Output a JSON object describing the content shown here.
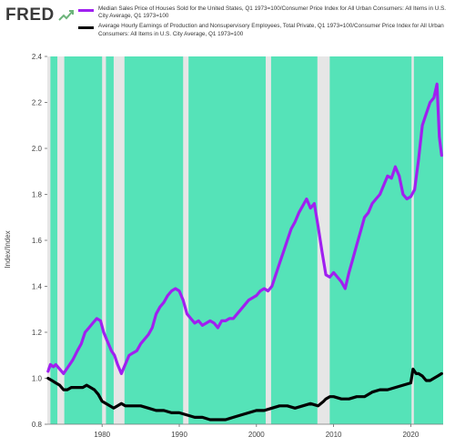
{
  "header": {
    "logo_text": "FRED"
  },
  "colors": {
    "recession_shade": "#55e3b8",
    "series1": "#a020f0",
    "series2": "#000000",
    "plot_background": "#e6e6e6"
  },
  "chart_data": {
    "type": "line",
    "title": "",
    "xlabel": "",
    "ylabel": "Index/Index",
    "xlim": [
      1972.9,
      2024.2
    ],
    "ylim": [
      0.8,
      2.4
    ],
    "y_ticks": [
      "0.8",
      "1.0",
      "1.2",
      "1.4",
      "1.6",
      "1.8",
      "2.0",
      "2.2",
      "2.4"
    ],
    "x_ticks": [
      "1980",
      "1990",
      "2000",
      "2010",
      "2020"
    ],
    "grid": false,
    "legend_position": "top",
    "shaded_periods": [
      [
        1973.3,
        1974.2
      ],
      [
        1975.1,
        1980.0
      ],
      [
        1980.5,
        1981.5
      ],
      [
        1982.9,
        1990.5
      ],
      [
        1991.2,
        2001.2
      ],
      [
        2001.9,
        2007.9
      ],
      [
        2009.5,
        2020.1
      ],
      [
        2020.4,
        2024.2
      ]
    ],
    "series": [
      {
        "name": "Median Sales Price of Houses Sold for the United States, Q1 1973=100/Consumer Price Index for All Urban Consumers: All Items in U.S. City Average, Q1 1973=100",
        "color": "#a020f0",
        "points": [
          [
            1973.0,
            1.03
          ],
          [
            1973.3,
            1.06
          ],
          [
            1973.7,
            1.05
          ],
          [
            1974.0,
            1.06
          ],
          [
            1974.5,
            1.04
          ],
          [
            1975.0,
            1.02
          ],
          [
            1975.6,
            1.05
          ],
          [
            1976.2,
            1.08
          ],
          [
            1976.8,
            1.12
          ],
          [
            1977.3,
            1.15
          ],
          [
            1977.8,
            1.2
          ],
          [
            1978.3,
            1.22
          ],
          [
            1978.8,
            1.24
          ],
          [
            1979.3,
            1.26
          ],
          [
            1979.8,
            1.25
          ],
          [
            1980.2,
            1.2
          ],
          [
            1980.7,
            1.16
          ],
          [
            1981.2,
            1.12
          ],
          [
            1981.6,
            1.1
          ],
          [
            1982.0,
            1.06
          ],
          [
            1982.5,
            1.02
          ],
          [
            1983.0,
            1.06
          ],
          [
            1983.5,
            1.1
          ],
          [
            1984.0,
            1.11
          ],
          [
            1984.5,
            1.12
          ],
          [
            1985.0,
            1.15
          ],
          [
            1985.5,
            1.17
          ],
          [
            1986.0,
            1.19
          ],
          [
            1986.5,
            1.22
          ],
          [
            1987.0,
            1.28
          ],
          [
            1987.5,
            1.31
          ],
          [
            1988.0,
            1.33
          ],
          [
            1988.5,
            1.36
          ],
          [
            1989.0,
            1.38
          ],
          [
            1989.5,
            1.39
          ],
          [
            1990.0,
            1.38
          ],
          [
            1990.5,
            1.34
          ],
          [
            1991.0,
            1.28
          ],
          [
            1991.5,
            1.26
          ],
          [
            1992.0,
            1.24
          ],
          [
            1992.5,
            1.25
          ],
          [
            1993.0,
            1.23
          ],
          [
            1993.5,
            1.24
          ],
          [
            1994.0,
            1.25
          ],
          [
            1994.5,
            1.24
          ],
          [
            1995.0,
            1.22
          ],
          [
            1995.5,
            1.25
          ],
          [
            1996.0,
            1.25
          ],
          [
            1996.5,
            1.26
          ],
          [
            1997.0,
            1.26
          ],
          [
            1997.5,
            1.28
          ],
          [
            1998.0,
            1.3
          ],
          [
            1998.5,
            1.32
          ],
          [
            1999.0,
            1.34
          ],
          [
            1999.5,
            1.35
          ],
          [
            2000.0,
            1.36
          ],
          [
            2000.5,
            1.38
          ],
          [
            2001.0,
            1.39
          ],
          [
            2001.5,
            1.38
          ],
          [
            2002.0,
            1.4
          ],
          [
            2002.5,
            1.45
          ],
          [
            2003.0,
            1.5
          ],
          [
            2003.5,
            1.55
          ],
          [
            2004.0,
            1.6
          ],
          [
            2004.5,
            1.65
          ],
          [
            2005.0,
            1.68
          ],
          [
            2005.5,
            1.72
          ],
          [
            2006.0,
            1.75
          ],
          [
            2006.5,
            1.78
          ],
          [
            2007.0,
            1.74
          ],
          [
            2007.5,
            1.76
          ],
          [
            2008.0,
            1.66
          ],
          [
            2008.5,
            1.55
          ],
          [
            2009.0,
            1.45
          ],
          [
            2009.5,
            1.44
          ],
          [
            2010.0,
            1.46
          ],
          [
            2010.5,
            1.44
          ],
          [
            2011.0,
            1.42
          ],
          [
            2011.5,
            1.39
          ],
          [
            2012.0,
            1.46
          ],
          [
            2012.5,
            1.52
          ],
          [
            2013.0,
            1.58
          ],
          [
            2013.5,
            1.64
          ],
          [
            2014.0,
            1.7
          ],
          [
            2014.5,
            1.72
          ],
          [
            2015.0,
            1.76
          ],
          [
            2015.5,
            1.78
          ],
          [
            2016.0,
            1.8
          ],
          [
            2016.5,
            1.84
          ],
          [
            2017.0,
            1.88
          ],
          [
            2017.5,
            1.87
          ],
          [
            2018.0,
            1.92
          ],
          [
            2018.5,
            1.88
          ],
          [
            2019.0,
            1.8
          ],
          [
            2019.5,
            1.78
          ],
          [
            2020.0,
            1.79
          ],
          [
            2020.5,
            1.82
          ],
          [
            2021.0,
            1.95
          ],
          [
            2021.5,
            2.1
          ],
          [
            2022.0,
            2.15
          ],
          [
            2022.5,
            2.2
          ],
          [
            2023.0,
            2.22
          ],
          [
            2023.4,
            2.28
          ],
          [
            2023.7,
            2.05
          ],
          [
            2024.0,
            1.97
          ]
        ]
      },
      {
        "name": "Average Hourly Earnings of Production and Nonsupervisory Employees, Total Private, Q1 1973=100/Consumer Price Index for All Urban Consumers: All Items in U.S. City Average, Q1 1973=100",
        "color": "#000000",
        "points": [
          [
            1973.0,
            1.0
          ],
          [
            1973.5,
            0.99
          ],
          [
            1974.0,
            0.98
          ],
          [
            1974.5,
            0.97
          ],
          [
            1975.0,
            0.95
          ],
          [
            1975.5,
            0.95
          ],
          [
            1976.0,
            0.96
          ],
          [
            1976.5,
            0.96
          ],
          [
            1977.0,
            0.96
          ],
          [
            1977.5,
            0.96
          ],
          [
            1978.0,
            0.97
          ],
          [
            1978.5,
            0.96
          ],
          [
            1979.0,
            0.95
          ],
          [
            1979.5,
            0.93
          ],
          [
            1980.0,
            0.9
          ],
          [
            1980.5,
            0.89
          ],
          [
            1981.0,
            0.88
          ],
          [
            1981.5,
            0.87
          ],
          [
            1982.0,
            0.88
          ],
          [
            1982.5,
            0.89
          ],
          [
            1983.0,
            0.88
          ],
          [
            1984.0,
            0.88
          ],
          [
            1985.0,
            0.88
          ],
          [
            1986.0,
            0.87
          ],
          [
            1987.0,
            0.86
          ],
          [
            1988.0,
            0.86
          ],
          [
            1989.0,
            0.85
          ],
          [
            1990.0,
            0.85
          ],
          [
            1991.0,
            0.84
          ],
          [
            1992.0,
            0.83
          ],
          [
            1993.0,
            0.83
          ],
          [
            1994.0,
            0.82
          ],
          [
            1995.0,
            0.82
          ],
          [
            1996.0,
            0.82
          ],
          [
            1997.0,
            0.83
          ],
          [
            1998.0,
            0.84
          ],
          [
            1999.0,
            0.85
          ],
          [
            2000.0,
            0.86
          ],
          [
            2001.0,
            0.86
          ],
          [
            2002.0,
            0.87
          ],
          [
            2003.0,
            0.88
          ],
          [
            2004.0,
            0.88
          ],
          [
            2005.0,
            0.87
          ],
          [
            2006.0,
            0.88
          ],
          [
            2007.0,
            0.89
          ],
          [
            2008.0,
            0.88
          ],
          [
            2008.7,
            0.9
          ],
          [
            2009.0,
            0.91
          ],
          [
            2009.5,
            0.92
          ],
          [
            2010.0,
            0.92
          ],
          [
            2011.0,
            0.91
          ],
          [
            2012.0,
            0.91
          ],
          [
            2013.0,
            0.92
          ],
          [
            2014.0,
            0.92
          ],
          [
            2015.0,
            0.94
          ],
          [
            2016.0,
            0.95
          ],
          [
            2017.0,
            0.95
          ],
          [
            2018.0,
            0.96
          ],
          [
            2019.0,
            0.97
          ],
          [
            2020.0,
            0.98
          ],
          [
            2020.3,
            1.04
          ],
          [
            2020.7,
            1.02
          ],
          [
            2021.0,
            1.02
          ],
          [
            2021.5,
            1.01
          ],
          [
            2022.0,
            0.99
          ],
          [
            2022.5,
            0.99
          ],
          [
            2023.0,
            1.0
          ],
          [
            2023.5,
            1.01
          ],
          [
            2024.0,
            1.02
          ]
        ]
      }
    ]
  }
}
